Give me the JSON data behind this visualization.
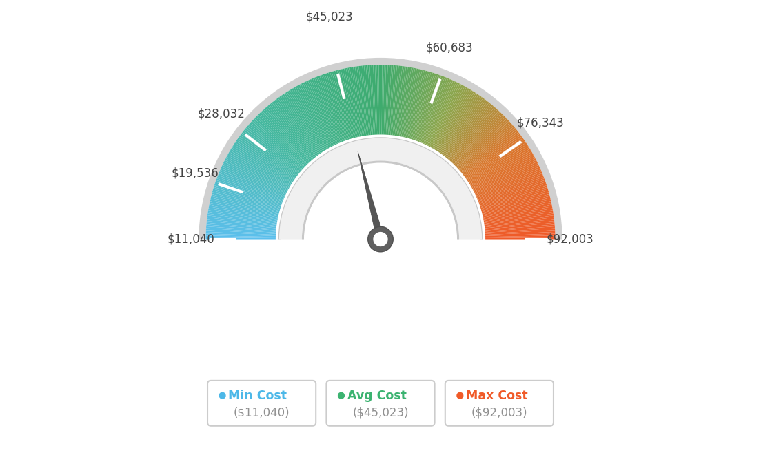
{
  "min_val": 11040,
  "max_val": 92003,
  "avg_val": 45023,
  "labels": [
    "$11,040",
    "$19,536",
    "$28,032",
    "$45,023",
    "$60,683",
    "$76,343",
    "$92,003"
  ],
  "label_values": [
    11040,
    19536,
    28032,
    45023,
    60683,
    76343,
    92003
  ],
  "legend": [
    {
      "label": "Min Cost",
      "value": "($11,040)",
      "color": "#4db8e8"
    },
    {
      "label": "Avg Cost",
      "value": "($45,023)",
      "color": "#3cb371"
    },
    {
      "label": "Max Cost",
      "value": "($92,003)",
      "color": "#f05a28"
    }
  ],
  "background_color": "#ffffff",
  "needle_color": "#555555",
  "tick_color": "#ffffff",
  "outer_border_color": "#d0d0d0",
  "inner_channel_color": "#e8e8e8",
  "inner_border_color": "#cccccc",
  "color_stops": [
    [
      0.0,
      [
        0.36,
        0.75,
        0.93
      ]
    ],
    [
      0.25,
      [
        0.27,
        0.72,
        0.62
      ]
    ],
    [
      0.5,
      [
        0.24,
        0.67,
        0.43
      ]
    ],
    [
      0.65,
      [
        0.55,
        0.65,
        0.3
      ]
    ],
    [
      0.8,
      [
        0.85,
        0.47,
        0.18
      ]
    ],
    [
      1.0,
      [
        0.94,
        0.35,
        0.16
      ]
    ]
  ]
}
